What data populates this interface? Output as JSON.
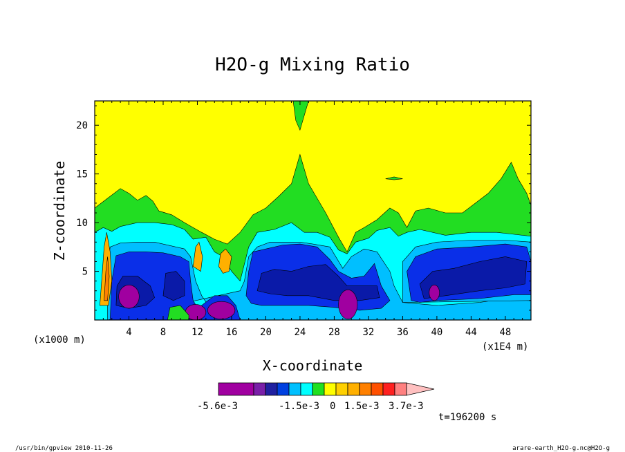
{
  "chart_data": {
    "type": "heatmap",
    "title": "H2O-g Mixing Ratio",
    "xlabel": "X-coordinate",
    "ylabel": "Z-coordinate",
    "x_units_left": "(x1000 m)",
    "x_units_right": "(x1E4 m)",
    "x_ticks": [
      4,
      8,
      12,
      16,
      20,
      24,
      28,
      32,
      36,
      40,
      44,
      48
    ],
    "y_ticks": [
      5,
      10,
      15,
      20
    ],
    "xlim": [
      0,
      51
    ],
    "ylim": [
      0,
      22.5
    ],
    "time_label": "t=196200 s",
    "colorbar": {
      "labels": [
        "-5.6e-3",
        "-1.5e-3",
        "0",
        "1.5e-3",
        "3.7e-3"
      ],
      "colors": [
        "#a000a0",
        "#7a1fa8",
        "#2020a0",
        "#0040e0",
        "#00c0ff",
        "#00ffff",
        "#20e020",
        "#ffff00",
        "#ffd000",
        "#ffb000",
        "#ff8000",
        "#ff5000",
        "#ff2020",
        "#ff8080",
        "#ffc0c0"
      ]
    },
    "levels": {
      "background": "#ffff00",
      "green": "#22dd22",
      "cyan": "#00ffff",
      "lightblue": "#00bfff",
      "blue": "#0a2fe8",
      "navy": "#0a1aa8",
      "purple": "#a000a0",
      "orange": "#ffb000",
      "darkorange": "#ff8000"
    }
  },
  "footer": {
    "left": "/usr/bin/gpview  2010-11-26",
    "right": "arare-earth_H2O-g.nc@H2O-g"
  }
}
